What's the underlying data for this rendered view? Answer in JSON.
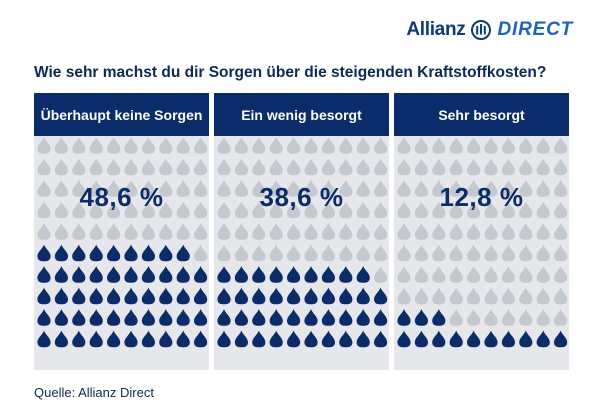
{
  "brand": {
    "word": "Allianz",
    "product": "DIRECT"
  },
  "title": "Wie sehr machst du dir Sorgen über die steigenden Kraftstoffkosten?",
  "chart_data": {
    "type": "pictogram",
    "unit": "%",
    "icon": "fuel-drop-icon",
    "icons_per_panel": 100,
    "grid": {
      "columns": 10,
      "rows": 10
    },
    "categories": [
      "Überhaupt keine Sorgen",
      "Ein wenig besorgt",
      "Sehr besorgt"
    ],
    "values": [
      48.6,
      38.6,
      12.8
    ],
    "value_labels": [
      "48,6 %",
      "38,6 %",
      "12,8 %"
    ],
    "filled_icons": [
      49,
      39,
      13
    ],
    "colors": {
      "filled": "#0a2c6a",
      "empty": "#c4c8cf",
      "background": "#e6e7ea"
    }
  },
  "source": "Quelle: Allianz Direct"
}
